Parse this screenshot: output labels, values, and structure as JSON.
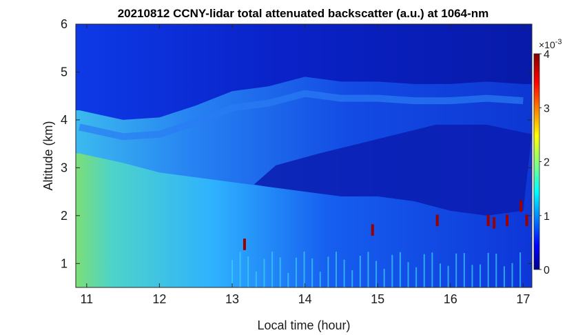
{
  "chart_data": {
    "type": "heatmap",
    "title": "20210812 CCNY-lidar total attenuated backscatter (a.u.) at 1064-nm",
    "xlabel": "Local time (hour)",
    "ylabel": "Altitude (km)",
    "xlim": [
      10.85,
      17.12
    ],
    "ylim": [
      0.5,
      6
    ],
    "x_ticks": [
      11,
      12,
      13,
      14,
      15,
      16,
      17
    ],
    "y_ticks": [
      1,
      2,
      3,
      4,
      5,
      6
    ],
    "colorbar": {
      "range": [
        0,
        4
      ],
      "ticks": [
        0,
        1,
        2,
        3,
        4
      ],
      "exponent_label": "×10",
      "exponent_power": "-3",
      "colormap": "jet"
    },
    "features": {
      "boundary_layer_top_km": [
        [
          10.9,
          4.2
        ],
        [
          11.5,
          4.0
        ],
        [
          12.0,
          4.05
        ],
        [
          12.5,
          4.3
        ],
        [
          13.0,
          4.6
        ],
        [
          13.5,
          4.7
        ],
        [
          14.0,
          4.9
        ],
        [
          14.5,
          4.8
        ],
        [
          15.0,
          4.8
        ],
        [
          15.5,
          4.75
        ],
        [
          16.0,
          4.75
        ],
        [
          16.5,
          4.8
        ],
        [
          17.0,
          4.75
        ]
      ],
      "lower_aerosol_layer_top_km": [
        [
          10.9,
          3.3
        ],
        [
          11.5,
          3.1
        ],
        [
          12.0,
          2.9
        ],
        [
          12.5,
          2.8
        ],
        [
          13.0,
          2.7
        ],
        [
          13.5,
          2.6
        ],
        [
          14.0,
          2.5
        ],
        [
          14.5,
          2.4
        ],
        [
          15.0,
          2.4
        ],
        [
          15.5,
          2.3
        ],
        [
          16.0,
          2.1
        ],
        [
          16.5,
          2.0
        ],
        [
          17.0,
          2.1
        ]
      ],
      "cloud_hits": [
        {
          "time": 13.17,
          "altitude_km": 1.4
        },
        {
          "time": 14.93,
          "altitude_km": 1.7
        },
        {
          "time": 15.82,
          "altitude_km": 1.9
        },
        {
          "time": 16.52,
          "altitude_km": 1.9
        },
        {
          "time": 16.6,
          "altitude_km": 1.85
        },
        {
          "time": 16.78,
          "altitude_km": 1.9
        },
        {
          "time": 16.97,
          "altitude_km": 2.2
        },
        {
          "time": 17.05,
          "altitude_km": 1.9
        }
      ]
    }
  }
}
